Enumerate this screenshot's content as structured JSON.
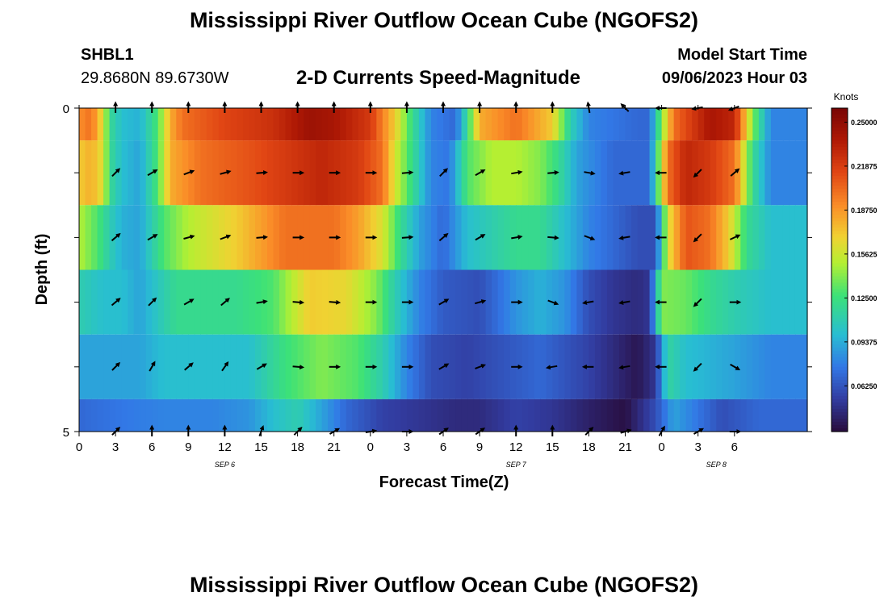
{
  "page": {
    "title": "Mississippi River Outflow Ocean Cube (NGOFS2)",
    "bottom_title": "Mississippi River Outflow Ocean Cube (NGOFS2)",
    "station_id": "SHBL1",
    "station_coords": "29.8680N  89.6730W",
    "subtitle": "2-D Currents Speed-Magnitude",
    "model_start_label": "Model Start Time",
    "model_start_value": "09/06/2023 Hour 03"
  },
  "chart_data": {
    "type": "heatmap",
    "title": "2-D Currents Speed-Magnitude",
    "xlabel": "Forecast Time(Z)",
    "ylabel": "Depth (ft)",
    "x_hours": [
      0,
      60
    ],
    "x_tick_labels": [
      "0",
      "3",
      "6",
      "9",
      "12",
      "15",
      "18",
      "21",
      "0",
      "3",
      "6",
      "9",
      "12",
      "15",
      "18",
      "21",
      "0",
      "3",
      "6"
    ],
    "date_labels": [
      {
        "text": "SEP 6",
        "hour": 12
      },
      {
        "text": "SEP 7",
        "hour": 36
      },
      {
        "text": "SEP 8",
        "hour": 52.5
      }
    ],
    "y_range": [
      0,
      5
    ],
    "y_tick_labels": [
      "0",
      "5"
    ],
    "colorbar": {
      "title": "Knots",
      "range": [
        0.03,
        0.26
      ],
      "ticks": [
        "0.25000",
        "0.21875",
        "0.18750",
        "0.15625",
        "0.12500",
        "0.09375",
        "0.06250"
      ],
      "tick_values": [
        0.25,
        0.21875,
        0.1875,
        0.15625,
        0.125,
        0.09375,
        0.0625
      ]
    },
    "layers": [
      {
        "depth_label": "0.0-0.5",
        "key": [
          [
            0,
            0.19
          ],
          [
            1,
            0.2
          ],
          [
            2,
            0.16
          ],
          [
            2.5,
            0.12
          ],
          [
            3.5,
            0.1
          ],
          [
            5,
            0.095
          ],
          [
            6.5,
            0.13
          ],
          [
            7.5,
            0.18
          ],
          [
            8.5,
            0.2
          ],
          [
            12,
            0.215
          ],
          [
            16,
            0.225
          ],
          [
            19,
            0.245
          ],
          [
            21,
            0.24
          ],
          [
            24,
            0.22
          ],
          [
            26,
            0.17
          ],
          [
            27.5,
            0.12
          ],
          [
            29,
            0.08
          ],
          [
            31,
            0.07
          ],
          [
            32,
            0.12
          ],
          [
            33,
            0.18
          ],
          [
            36,
            0.2
          ],
          [
            39,
            0.17
          ],
          [
            40.5,
            0.11
          ],
          [
            42,
            0.08
          ],
          [
            46,
            0.07
          ],
          [
            47,
            0.07
          ],
          [
            48,
            0.14
          ],
          [
            49,
            0.2
          ],
          [
            52,
            0.24
          ],
          [
            54,
            0.23
          ],
          [
            55.5,
            0.14
          ],
          [
            57,
            0.08
          ],
          [
            60,
            0.08
          ]
        ]
      },
      {
        "depth_label": "0.5-1.5",
        "key": [
          [
            0,
            0.17
          ],
          [
            1,
            0.18
          ],
          [
            2,
            0.16
          ],
          [
            2.5,
            0.12
          ],
          [
            3.5,
            0.1
          ],
          [
            5,
            0.09
          ],
          [
            6.5,
            0.13
          ],
          [
            7.5,
            0.18
          ],
          [
            10,
            0.2
          ],
          [
            14,
            0.21
          ],
          [
            17,
            0.22
          ],
          [
            20,
            0.23
          ],
          [
            23,
            0.22
          ],
          [
            25,
            0.2
          ],
          [
            26,
            0.16
          ],
          [
            27.5,
            0.12
          ],
          [
            29,
            0.08
          ],
          [
            30.5,
            0.075
          ],
          [
            32,
            0.13
          ],
          [
            34,
            0.15
          ],
          [
            36,
            0.15
          ],
          [
            38,
            0.14
          ],
          [
            39.5,
            0.12
          ],
          [
            41,
            0.09
          ],
          [
            44,
            0.07
          ],
          [
            47,
            0.07
          ],
          [
            48.5,
            0.2
          ],
          [
            50,
            0.23
          ],
          [
            52,
            0.22
          ],
          [
            54,
            0.2
          ],
          [
            55.5,
            0.12
          ],
          [
            57,
            0.08
          ],
          [
            60,
            0.08
          ]
        ]
      },
      {
        "depth_label": "1.5-2.5",
        "key": [
          [
            0,
            0.15
          ],
          [
            1.5,
            0.13
          ],
          [
            2.5,
            0.11
          ],
          [
            3.5,
            0.095
          ],
          [
            5,
            0.09
          ],
          [
            6,
            0.11
          ],
          [
            7,
            0.13
          ],
          [
            9,
            0.15
          ],
          [
            13,
            0.17
          ],
          [
            17,
            0.2
          ],
          [
            21,
            0.2
          ],
          [
            23,
            0.185
          ],
          [
            25,
            0.16
          ],
          [
            26.5,
            0.12
          ],
          [
            28,
            0.09
          ],
          [
            30,
            0.07
          ],
          [
            32,
            0.1
          ],
          [
            34,
            0.11
          ],
          [
            36,
            0.12
          ],
          [
            38,
            0.12
          ],
          [
            40,
            0.1
          ],
          [
            42,
            0.08
          ],
          [
            46,
            0.06
          ],
          [
            47.5,
            0.06
          ],
          [
            48.5,
            0.16
          ],
          [
            50,
            0.21
          ],
          [
            52,
            0.2
          ],
          [
            53.5,
            0.17
          ],
          [
            55,
            0.12
          ],
          [
            57,
            0.1
          ],
          [
            60,
            0.1
          ]
        ]
      },
      {
        "depth_label": "2.5-3.5",
        "key": [
          [
            0,
            0.11
          ],
          [
            2,
            0.1
          ],
          [
            3.5,
            0.1
          ],
          [
            5,
            0.09
          ],
          [
            6,
            0.1
          ],
          [
            8,
            0.12
          ],
          [
            13,
            0.12
          ],
          [
            16,
            0.13
          ],
          [
            19,
            0.17
          ],
          [
            22,
            0.165
          ],
          [
            24.5,
            0.14
          ],
          [
            26,
            0.11
          ],
          [
            28,
            0.08
          ],
          [
            30,
            0.065
          ],
          [
            33,
            0.06
          ],
          [
            36,
            0.085
          ],
          [
            38,
            0.095
          ],
          [
            40,
            0.085
          ],
          [
            42,
            0.06
          ],
          [
            44,
            0.05
          ],
          [
            46,
            0.045
          ],
          [
            47,
            0.05
          ],
          [
            48,
            0.14
          ],
          [
            50,
            0.135
          ],
          [
            52,
            0.12
          ],
          [
            54,
            0.11
          ],
          [
            57,
            0.1
          ],
          [
            60,
            0.1
          ]
        ]
      },
      {
        "depth_label": "3.5-4.5",
        "key": [
          [
            0,
            0.09
          ],
          [
            5,
            0.09
          ],
          [
            7,
            0.1
          ],
          [
            10,
            0.1
          ],
          [
            14,
            0.1
          ],
          [
            17,
            0.125
          ],
          [
            20,
            0.14
          ],
          [
            23,
            0.13
          ],
          [
            25,
            0.11
          ],
          [
            27,
            0.08
          ],
          [
            29,
            0.06
          ],
          [
            32,
            0.055
          ],
          [
            36,
            0.065
          ],
          [
            38,
            0.07
          ],
          [
            42,
            0.055
          ],
          [
            44,
            0.045
          ],
          [
            46,
            0.035
          ],
          [
            47.5,
            0.05
          ],
          [
            48.5,
            0.115
          ],
          [
            50,
            0.1
          ],
          [
            54,
            0.09
          ],
          [
            57,
            0.08
          ],
          [
            60,
            0.08
          ]
        ]
      },
      {
        "depth_label": "4.5-5.0",
        "key": [
          [
            0,
            0.07
          ],
          [
            3,
            0.075
          ],
          [
            7,
            0.08
          ],
          [
            11,
            0.08
          ],
          [
            14,
            0.085
          ],
          [
            16,
            0.1
          ],
          [
            18,
            0.11
          ],
          [
            20,
            0.09
          ],
          [
            22,
            0.07
          ],
          [
            25,
            0.055
          ],
          [
            28,
            0.05
          ],
          [
            31,
            0.045
          ],
          [
            33,
            0.045
          ],
          [
            36,
            0.055
          ],
          [
            39,
            0.05
          ],
          [
            42,
            0.04
          ],
          [
            45,
            0.032
          ],
          [
            47.5,
            0.06
          ],
          [
            49,
            0.09
          ],
          [
            51,
            0.075
          ],
          [
            53,
            0.06
          ],
          [
            56,
            0.07
          ],
          [
            60,
            0.07
          ]
        ]
      }
    ],
    "arrows": {
      "hours": [
        3,
        6,
        9,
        12,
        15,
        18,
        21,
        24,
        27,
        30,
        33,
        36,
        39,
        42,
        45,
        48,
        51,
        54
      ],
      "angles_deg": [
        [
          -90,
          -90,
          -90,
          -90,
          -90,
          -90,
          -90,
          -90,
          -90,
          -90,
          -90,
          -90,
          -90,
          -100,
          -135,
          180,
          170,
          160
        ],
        [
          -45,
          -30,
          -20,
          -15,
          -5,
          0,
          0,
          0,
          -5,
          -45,
          -30,
          -10,
          -5,
          10,
          170,
          180,
          135,
          -40
        ],
        [
          -40,
          -30,
          -15,
          -20,
          -5,
          0,
          0,
          0,
          -5,
          -40,
          -30,
          -10,
          5,
          20,
          170,
          180,
          135,
          -25
        ],
        [
          -40,
          -45,
          -30,
          -40,
          -10,
          5,
          5,
          0,
          0,
          -30,
          -15,
          0,
          20,
          170,
          170,
          180,
          135,
          0
        ],
        [
          -45,
          -60,
          -40,
          -55,
          -30,
          5,
          0,
          0,
          0,
          -30,
          -20,
          0,
          170,
          180,
          170,
          180,
          135,
          30
        ],
        [
          -45,
          -90,
          -90,
          -90,
          -70,
          -45,
          -30,
          -10,
          0,
          -35,
          -35,
          -90,
          -90,
          -45,
          -15,
          -60,
          -30,
          0
        ]
      ]
    }
  }
}
